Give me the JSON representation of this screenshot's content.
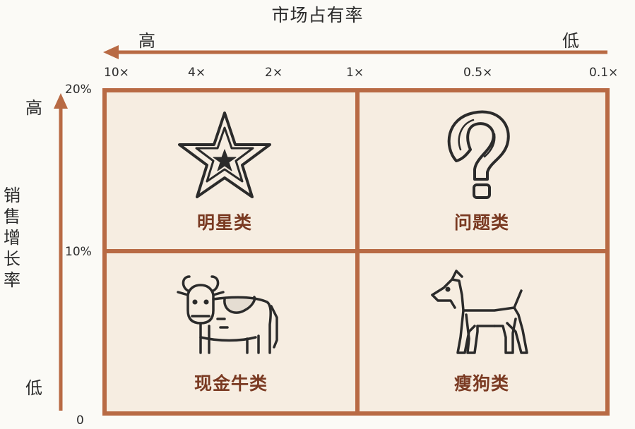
{
  "x_axis": {
    "title": "市场占有率",
    "high_label": "高",
    "low_label": "低",
    "ticks": [
      "10×",
      "4×",
      "2×",
      "1×",
      "0.5×",
      "0.1×"
    ]
  },
  "y_axis": {
    "title": "销售增长率",
    "high_label": "高",
    "low_label": "低",
    "ticks": [
      "20%",
      "10%",
      "0"
    ]
  },
  "quadrants": {
    "top_left": {
      "label": "明星类",
      "icon": "star-icon"
    },
    "top_right": {
      "label": "问题类",
      "icon": "question-mark-icon"
    },
    "bottom_left": {
      "label": "现金牛类",
      "icon": "cow-icon"
    },
    "bottom_right": {
      "label": "瘦狗类",
      "icon": "dog-icon"
    }
  },
  "colors": {
    "frame": "#b86a44",
    "cell_bg": "#f6ede1",
    "arrow": "#b86a44",
    "label": "#7a3a22",
    "icon_stroke": "#2b2b2b"
  }
}
